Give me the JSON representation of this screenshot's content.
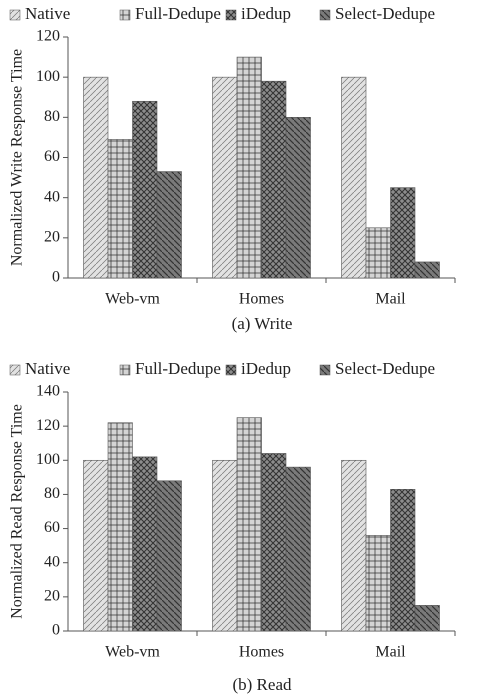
{
  "chart_data": [
    {
      "type": "bar",
      "caption": "(a) Write",
      "y_label": "Normalized Write Response Time",
      "categories": [
        "Web-vm",
        "Homes",
        "Mail"
      ],
      "series": [
        {
          "name": "Native",
          "color": "#e2e2e2",
          "values": [
            100,
            100,
            100
          ]
        },
        {
          "name": "Full-Dedupe",
          "color": "#d4d4d4",
          "values": [
            69,
            110,
            25
          ]
        },
        {
          "name": "iDedup",
          "color": "#8c8c8c",
          "values": [
            88,
            98,
            45
          ]
        },
        {
          "name": "Select-Dedupe",
          "color": "#7a7a7a",
          "values": [
            53,
            80,
            8
          ]
        }
      ],
      "ylim": [
        0,
        120
      ],
      "yticks": [
        0,
        20,
        40,
        60,
        80,
        100,
        120
      ]
    },
    {
      "type": "bar",
      "caption": "(b) Read",
      "y_label": "Normalized Read Response Time",
      "categories": [
        "Web-vm",
        "Homes",
        "Mail"
      ],
      "series": [
        {
          "name": "Native",
          "color": "#e2e2e2",
          "values": [
            100,
            100,
            100
          ]
        },
        {
          "name": "Full-Dedupe",
          "color": "#d4d4d4",
          "values": [
            122,
            125,
            56
          ]
        },
        {
          "name": "iDedup",
          "color": "#8c8c8c",
          "values": [
            102,
            104,
            83
          ]
        },
        {
          "name": "Select-Dedupe",
          "color": "#7a7a7a",
          "values": [
            88,
            96,
            15
          ]
        }
      ],
      "ylim": [
        0,
        140
      ],
      "yticks": [
        0,
        20,
        40,
        60,
        80,
        100,
        120,
        140
      ]
    }
  ]
}
